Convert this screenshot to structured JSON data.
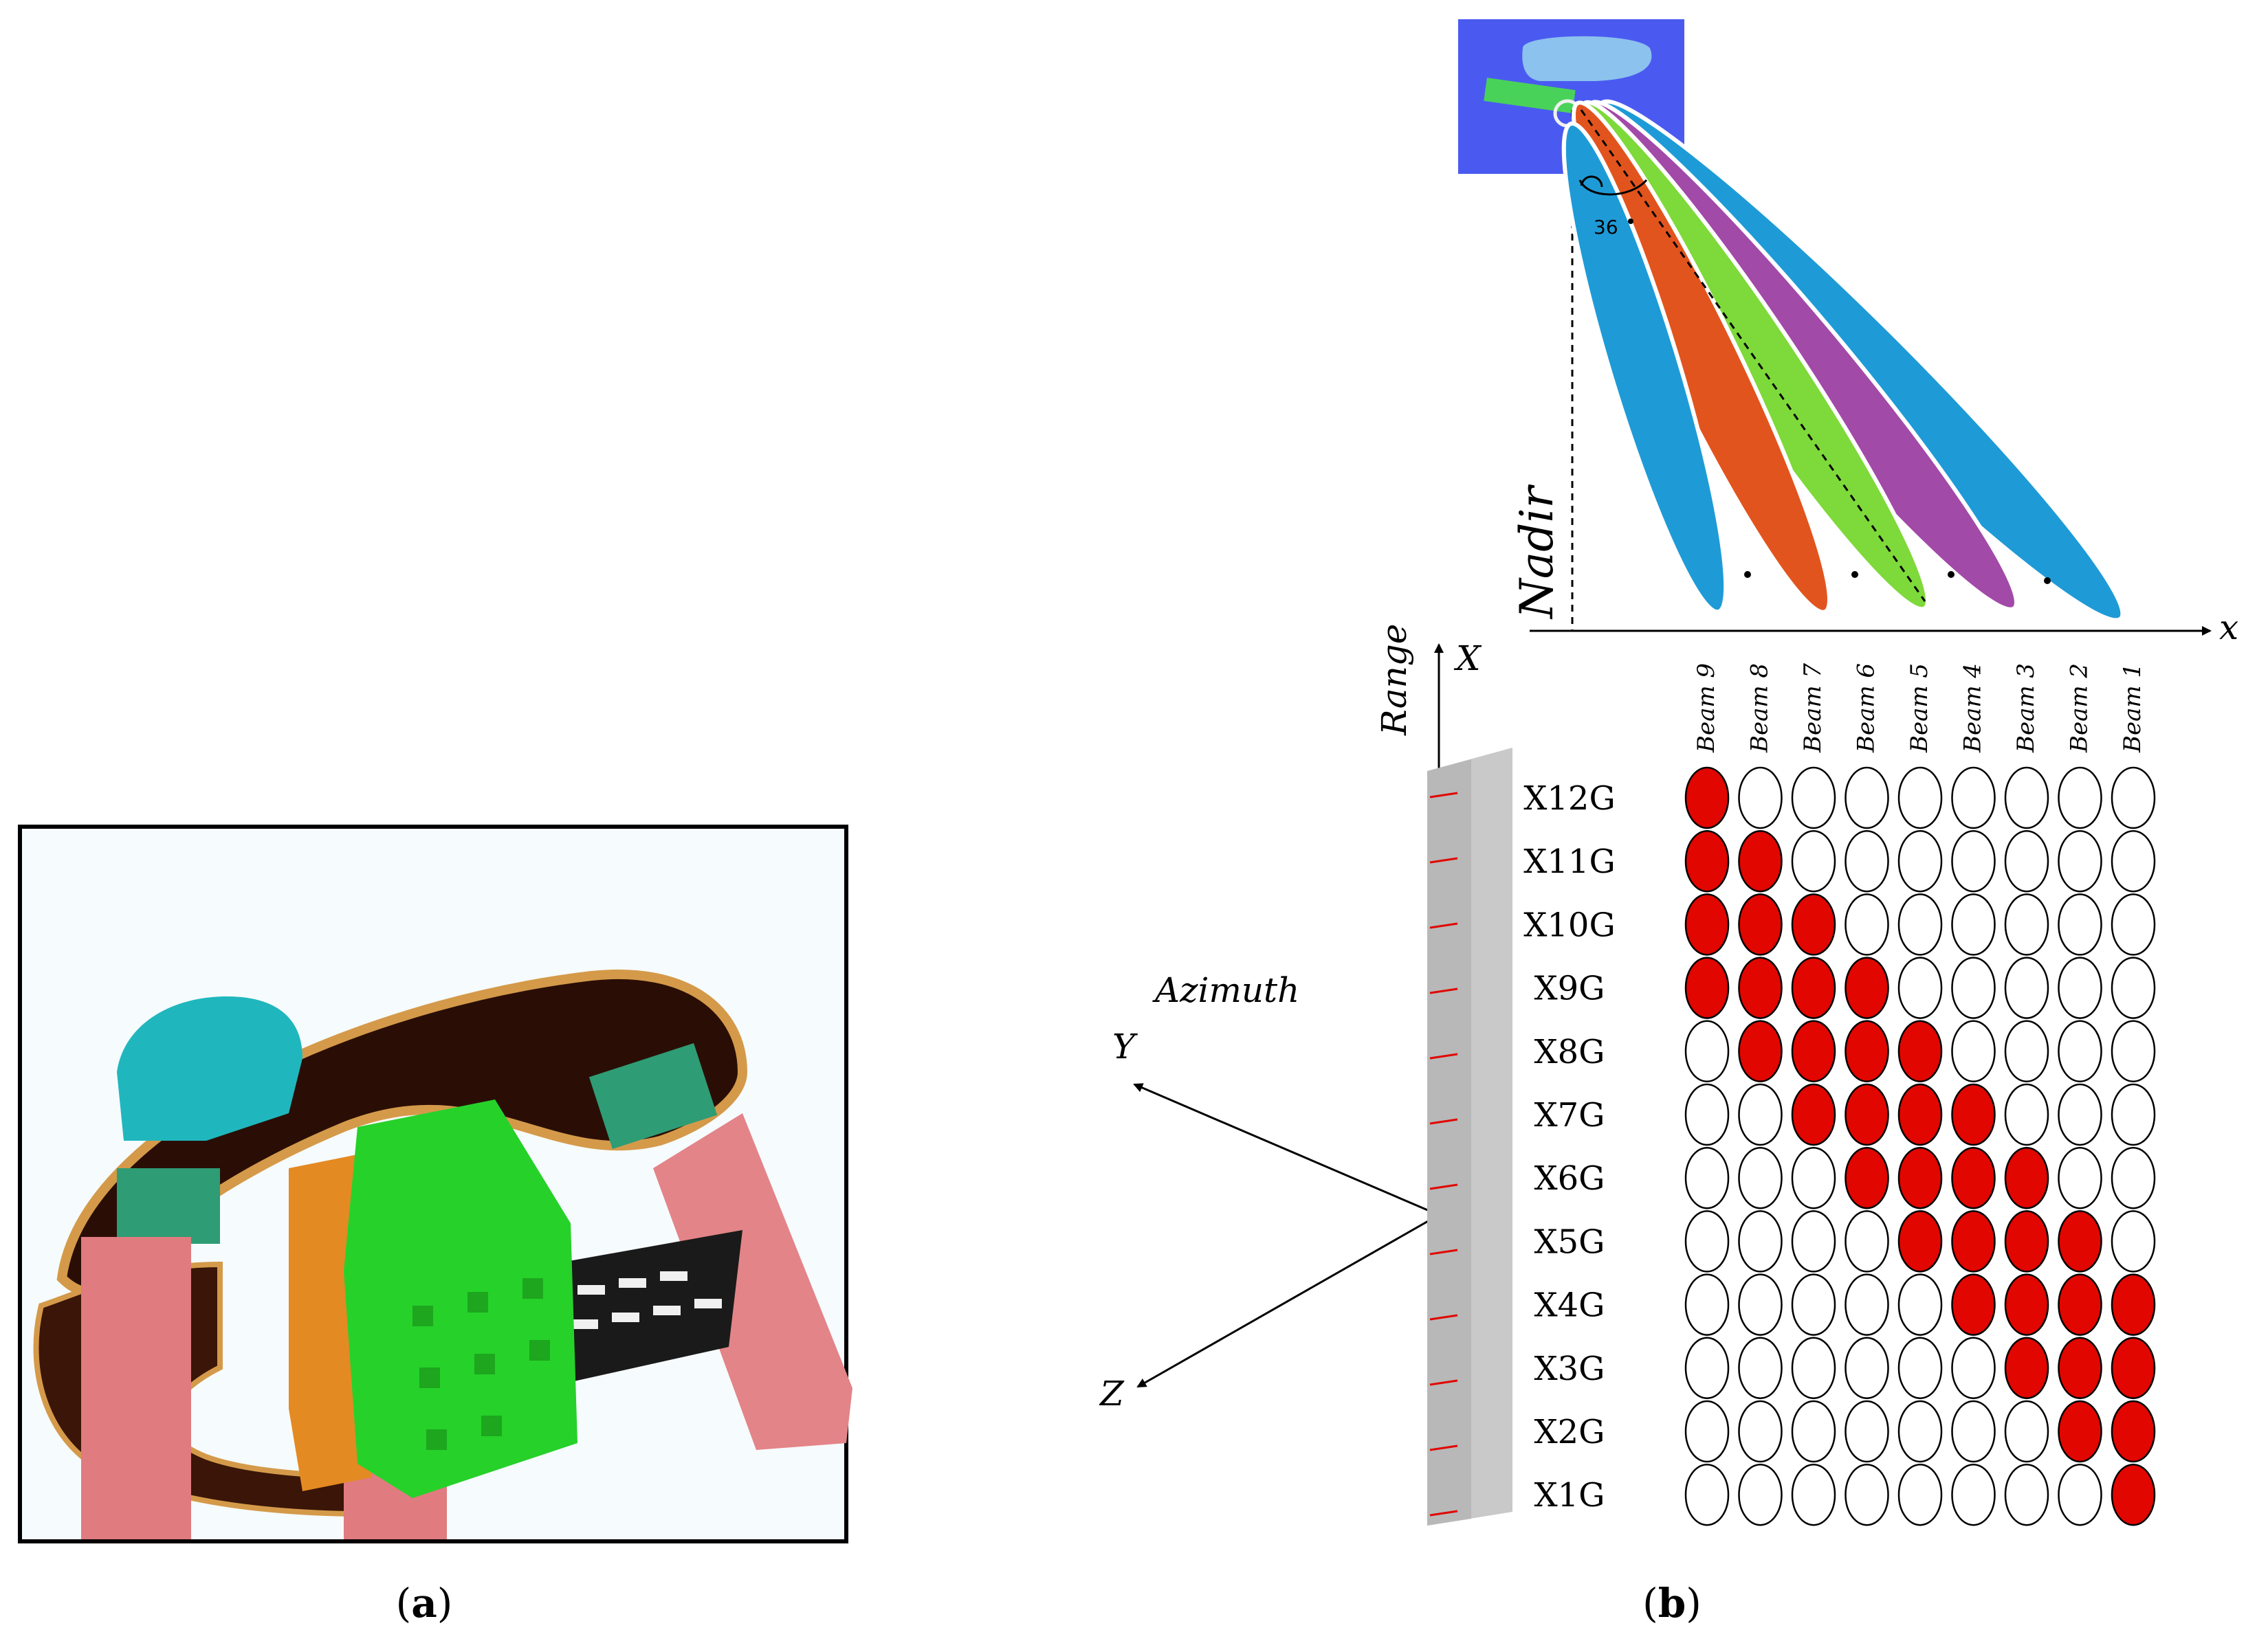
{
  "panel_a": {
    "caption_open": "(",
    "caption_letter": "a",
    "caption_close": ")"
  },
  "panel_b": {
    "caption_open": "(",
    "caption_letter": "b",
    "caption_close": ")",
    "nadir_label": "Nadir",
    "x_axis_label": "x",
    "angle_label": "36",
    "coord_axes": {
      "x": "X",
      "y": "Y",
      "z": "Z",
      "range": "Range",
      "azimuth": "Azimuth"
    },
    "beam_colors": {
      "blue": "#1E9BD7",
      "orange": "#E2541E",
      "green": "#7ED93A",
      "purple": "#A24AA7",
      "grid_red": "#E10600"
    },
    "beams": [
      "Beam 9",
      "Beam 8",
      "Beam 7",
      "Beam 6",
      "Beam 5",
      "Beam 4",
      "Beam 3",
      "Beam 2",
      "Beam 1"
    ],
    "rows": [
      {
        "label": "X12G",
        "active": [
          1,
          0,
          0,
          0,
          0,
          0,
          0,
          0,
          0
        ]
      },
      {
        "label": "X11G",
        "active": [
          1,
          1,
          0,
          0,
          0,
          0,
          0,
          0,
          0
        ]
      },
      {
        "label": "X10G",
        "active": [
          1,
          1,
          1,
          0,
          0,
          0,
          0,
          0,
          0
        ]
      },
      {
        "label": "X9G",
        "active": [
          1,
          1,
          1,
          1,
          0,
          0,
          0,
          0,
          0
        ]
      },
      {
        "label": "X8G",
        "active": [
          0,
          1,
          1,
          1,
          1,
          0,
          0,
          0,
          0
        ]
      },
      {
        "label": "X7G",
        "active": [
          0,
          0,
          1,
          1,
          1,
          1,
          0,
          0,
          0
        ]
      },
      {
        "label": "X6G",
        "active": [
          0,
          0,
          0,
          1,
          1,
          1,
          1,
          0,
          0
        ]
      },
      {
        "label": "X5G",
        "active": [
          0,
          0,
          0,
          0,
          1,
          1,
          1,
          1,
          0
        ]
      },
      {
        "label": "X4G",
        "active": [
          0,
          0,
          0,
          0,
          0,
          1,
          1,
          1,
          1
        ]
      },
      {
        "label": "X3G",
        "active": [
          0,
          0,
          0,
          0,
          0,
          0,
          1,
          1,
          1
        ]
      },
      {
        "label": "X2G",
        "active": [
          0,
          0,
          0,
          0,
          0,
          0,
          0,
          1,
          1
        ]
      },
      {
        "label": "X1G",
        "active": [
          0,
          0,
          0,
          0,
          0,
          0,
          0,
          0,
          1
        ]
      }
    ]
  }
}
